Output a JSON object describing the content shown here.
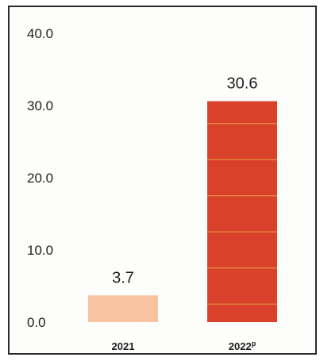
{
  "chart_data": {
    "type": "bar",
    "categories": [
      "2021",
      "2022P"
    ],
    "values": [
      3.7,
      30.6
    ],
    "data_labels": [
      "3.7",
      "30.6"
    ],
    "y_ticks": [
      "0.0",
      "10.0",
      "20.0",
      "30.0",
      "40.0"
    ],
    "ylim": [
      0,
      40
    ],
    "grid": false,
    "legend": "none",
    "colors": [
      "#f7c3a0",
      "#d9412a"
    ],
    "band_color": "#e8a24a"
  }
}
